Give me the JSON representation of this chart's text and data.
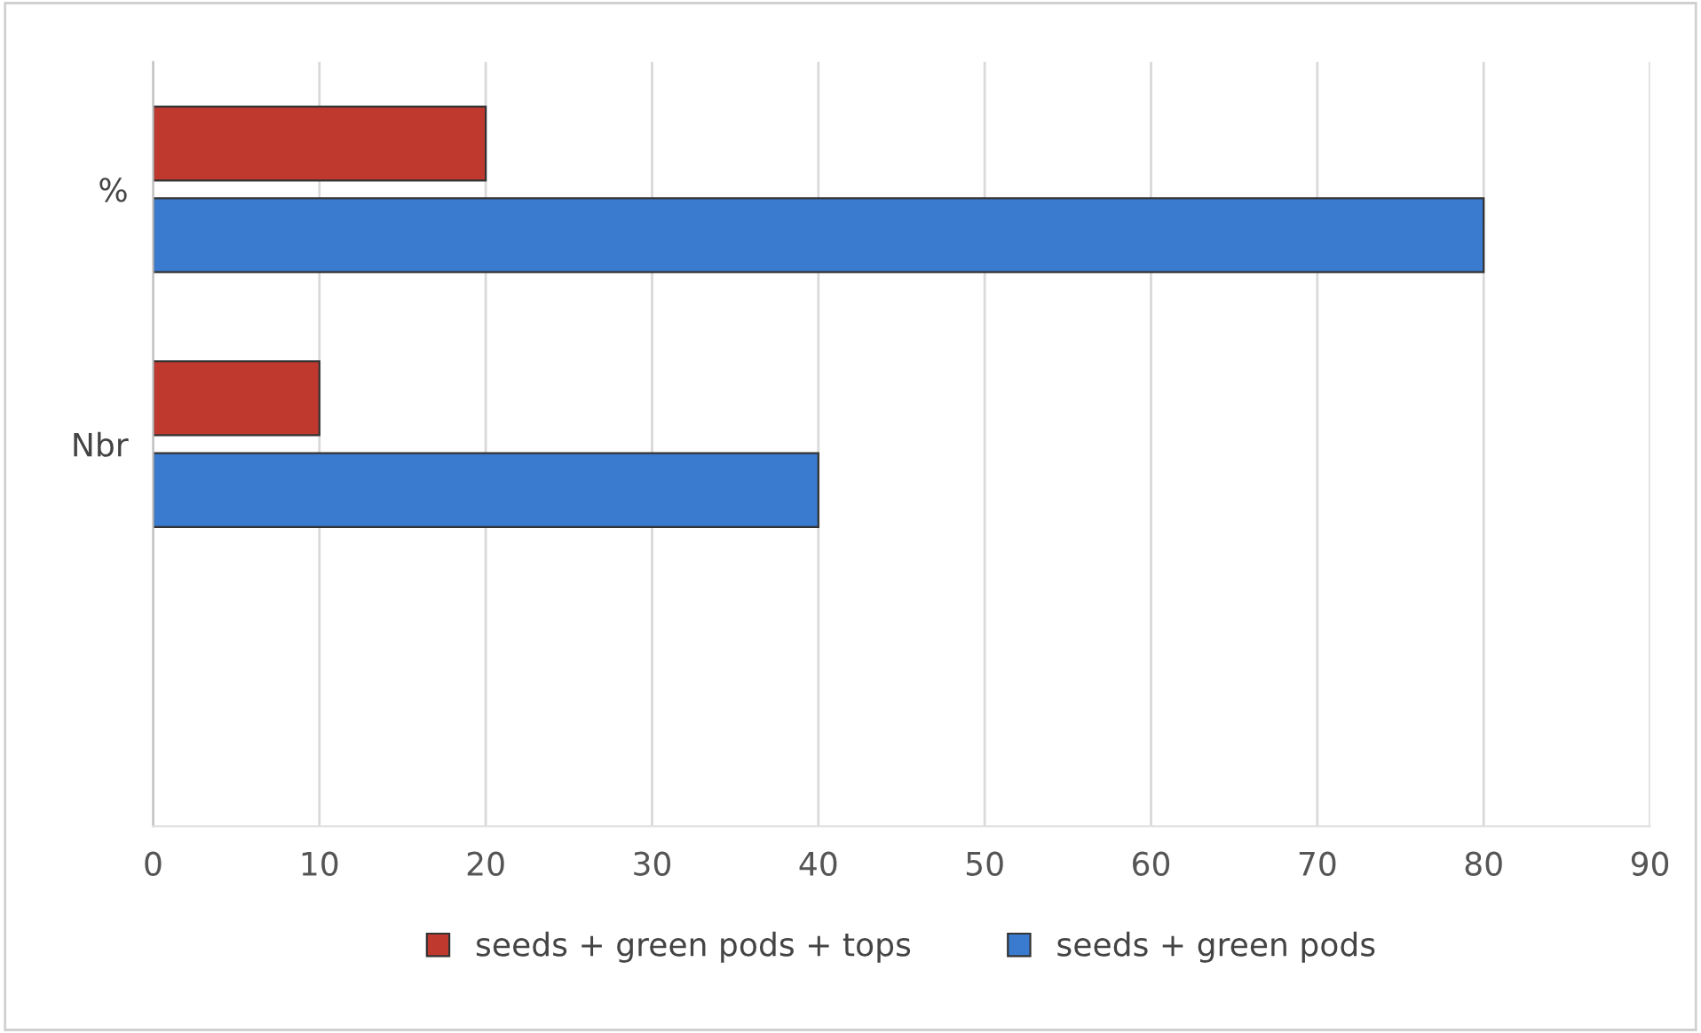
{
  "chart_data": {
    "type": "bar",
    "orientation": "horizontal",
    "categories": [
      "%",
      "Nbr",
      null
    ],
    "series": [
      {
        "name": "seeds + green pods + tops",
        "color": "#c0392f",
        "values": [
          20,
          10,
          null
        ]
      },
      {
        "name": "seeds + green pods",
        "color": "#3a7bd0",
        "values": [
          80,
          40,
          null
        ]
      }
    ],
    "xlim": [
      0,
      90
    ],
    "xticks": [
      0,
      10,
      20,
      30,
      40,
      50,
      60,
      70,
      80,
      90
    ],
    "grid": "x",
    "legend": "bottom"
  }
}
